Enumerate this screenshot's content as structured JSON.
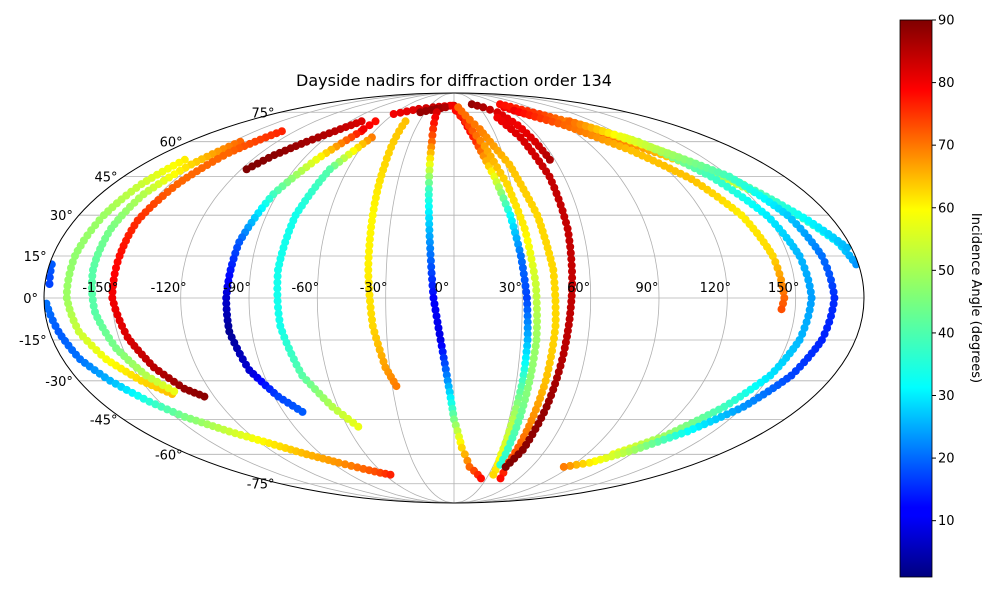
{
  "chart_data": {
    "type": "scatter",
    "projection": "mollweide",
    "title": "Dayside nadirs for diffraction order 134",
    "xlabel": "",
    "ylabel": "",
    "xlim": [
      -180,
      180
    ],
    "ylim": [
      -90,
      90
    ],
    "grid": true,
    "colormap": "jet",
    "colorbar": {
      "label": "Incidence Angle (degrees)",
      "range": [
        1,
        90
      ],
      "ticks": [
        "10",
        "20",
        "30",
        "40",
        "50",
        "60",
        "70",
        "80",
        "90"
      ]
    },
    "x_tick_labels": [
      "-150°",
      "-120°",
      "-90°",
      "-60°",
      "-30°",
      "0°",
      "30°",
      "60°",
      "90°",
      "120°",
      "150°"
    ],
    "y_tick_labels": [
      "-75°",
      "-60°",
      "-45°",
      "-30°",
      "-15°",
      "0°",
      "15°",
      "30°",
      "45°",
      "60°",
      "75°"
    ],
    "tracks": [
      {
        "points": [
          [
            -179,
            -2,
            22
          ],
          [
            -176,
            -12,
            20
          ],
          [
            -172,
            -22,
            22
          ],
          [
            -165,
            -30,
            28
          ],
          [
            -155,
            -38,
            38
          ],
          [
            -145,
            -44,
            45
          ],
          [
            -130,
            -50,
            52
          ],
          [
            -115,
            -55,
            58
          ],
          [
            -100,
            -60,
            63
          ],
          [
            -85,
            -64,
            66
          ],
          [
            -72,
            -67,
            70
          ],
          [
            -62,
            -69,
            73
          ],
          [
            -55,
            -70,
            76
          ]
        ]
      },
      {
        "points": [
          [
            -179,
            12,
            20
          ],
          [
            -178,
            5,
            18
          ]
        ]
      },
      {
        "points": [
          [
            -160,
            52,
            58
          ],
          [
            -165,
            42,
            52
          ],
          [
            -168,
            30,
            48
          ],
          [
            -170,
            15,
            47
          ],
          [
            -170,
            0,
            48
          ],
          [
            -167,
            -12,
            52
          ],
          [
            -160,
            -22,
            56
          ],
          [
            -150,
            -30,
            60
          ],
          [
            -140,
            -35,
            62
          ]
        ]
      },
      {
        "points": [
          [
            -145,
            60,
            70
          ],
          [
            -152,
            50,
            60
          ],
          [
            -158,
            38,
            50
          ],
          [
            -160,
            25,
            45
          ],
          [
            -160,
            10,
            42
          ],
          [
            -158,
            -5,
            42
          ],
          [
            -153,
            -18,
            45
          ],
          [
            -146,
            -28,
            50
          ],
          [
            -138,
            -34,
            55
          ]
        ]
      },
      {
        "points": [
          [
            -130,
            65,
            76
          ],
          [
            -140,
            55,
            70
          ],
          [
            -146,
            42,
            70
          ],
          [
            -150,
            28,
            75
          ],
          [
            -150,
            15,
            78
          ],
          [
            -150,
            0,
            80
          ],
          [
            -146,
            -14,
            82
          ],
          [
            -140,
            -25,
            85
          ],
          [
            -132,
            -33,
            88
          ],
          [
            -125,
            -36,
            89
          ]
        ]
      },
      {
        "points": [
          [
            -80,
            70,
            82
          ],
          [
            -90,
            65,
            85
          ],
          [
            -100,
            60,
            87
          ],
          [
            -110,
            54,
            89
          ],
          [
            -117,
            48,
            90
          ]
        ]
      },
      {
        "points": [
          [
            -70,
            65,
            78
          ],
          [
            -82,
            52,
            55
          ],
          [
            -92,
            38,
            40
          ],
          [
            -98,
            20,
            20
          ],
          [
            -100,
            0,
            8
          ],
          [
            -100,
            -12,
            3
          ],
          [
            -96,
            -26,
            8
          ],
          [
            -88,
            -36,
            18
          ],
          [
            -80,
            -42,
            20
          ]
        ]
      },
      {
        "points": [
          [
            -58,
            62,
            68
          ],
          [
            -70,
            48,
            42
          ],
          [
            -76,
            30,
            36
          ],
          [
            -78,
            10,
            36
          ],
          [
            -77,
            -10,
            36
          ],
          [
            -72,
            -28,
            42
          ],
          [
            -63,
            -40,
            50
          ],
          [
            -54,
            -48,
            55
          ]
        ]
      },
      {
        "points": [
          [
            -68,
            70,
            78
          ],
          [
            -70,
            66,
            80
          ]
        ]
      },
      {
        "points": [
          [
            -60,
            74,
            80
          ],
          [
            -40,
            77,
            82
          ],
          [
            -25,
            78,
            84
          ],
          [
            -5,
            79,
            80
          ]
        ]
      },
      {
        "points": [
          [
            -35,
            75,
            88
          ],
          [
            -20,
            77,
            88
          ],
          [
            -10,
            78,
            86
          ]
        ]
      },
      {
        "points": [
          [
            -42,
            70,
            62
          ],
          [
            -40,
            50,
            60
          ],
          [
            -39,
            30,
            57
          ],
          [
            -38,
            10,
            58
          ],
          [
            -36,
            -10,
            60
          ],
          [
            -32,
            -25,
            65
          ],
          [
            -28,
            -32,
            68
          ]
        ]
      },
      {
        "points": [
          [
            -18,
            75,
            82
          ],
          [
            -15,
            60,
            70
          ],
          [
            -13,
            40,
            40
          ],
          [
            -11,
            20,
            25
          ],
          [
            -9,
            0,
            12
          ],
          [
            -6,
            -15,
            10
          ],
          [
            -3,
            -30,
            25
          ],
          [
            0,
            -45,
            45
          ],
          [
            5,
            -57,
            60
          ],
          [
            12,
            -66,
            70
          ],
          [
            25,
            -72,
            78
          ]
        ]
      },
      {
        "points": [
          [
            0,
            79,
            85
          ],
          [
            8,
            72,
            82
          ],
          [
            15,
            60,
            75
          ],
          [
            22,
            45,
            55
          ],
          [
            27,
            30,
            35
          ],
          [
            30,
            15,
            22
          ],
          [
            32,
            0,
            18
          ],
          [
            33,
            -15,
            28
          ],
          [
            33,
            -30,
            40
          ],
          [
            32,
            -45,
            50
          ],
          [
            32,
            -60,
            55
          ],
          [
            34,
            -70,
            60
          ]
        ]
      },
      {
        "points": [
          [
            -2,
            79,
            80
          ],
          [
            10,
            70,
            75
          ],
          [
            20,
            58,
            65
          ],
          [
            28,
            42,
            60
          ],
          [
            33,
            25,
            58
          ],
          [
            36,
            5,
            52
          ],
          [
            37,
            -15,
            48
          ],
          [
            36,
            -35,
            46
          ],
          [
            35,
            -55,
            40
          ],
          [
            35,
            -65,
            38
          ]
        ]
      },
      {
        "points": [
          [
            5,
            78,
            70
          ],
          [
            20,
            66,
            68
          ],
          [
            32,
            50,
            62
          ],
          [
            40,
            30,
            60
          ],
          [
            44,
            10,
            60
          ],
          [
            45,
            -10,
            60
          ],
          [
            44,
            -30,
            62
          ],
          [
            42,
            -50,
            68
          ],
          [
            40,
            -66,
            74
          ],
          [
            43,
            -72,
            78
          ]
        ]
      },
      {
        "points": [
          [
            24,
            80,
            88
          ],
          [
            35,
            78,
            86
          ],
          [
            45,
            75,
            82
          ],
          [
            52,
            68,
            80
          ],
          [
            55,
            60,
            82
          ],
          [
            57,
            52,
            86
          ]
        ]
      },
      {
        "points": [
          [
            40,
            72,
            80
          ],
          [
            47,
            62,
            82
          ],
          [
            52,
            45,
            84
          ],
          [
            53,
            25,
            84
          ],
          [
            52,
            5,
            84
          ],
          [
            50,
            -20,
            85
          ],
          [
            48,
            -40,
            88
          ],
          [
            45,
            -58,
            89
          ],
          [
            40,
            -66,
            90
          ]
        ]
      },
      {
        "points": [
          [
            60,
            78,
            80
          ],
          [
            80,
            72,
            75
          ],
          [
            100,
            66,
            72
          ],
          [
            120,
            58,
            66
          ],
          [
            140,
            48,
            56
          ],
          [
            160,
            35,
            45
          ],
          [
            175,
            20,
            32
          ],
          [
            179,
            12,
            25
          ]
        ]
      },
      {
        "points": [
          [
            62,
            80,
            78
          ],
          [
            85,
            74,
            74
          ],
          [
            110,
            66,
            62
          ],
          [
            130,
            56,
            54
          ],
          [
            150,
            44,
            45
          ],
          [
            168,
            28,
            34
          ],
          [
            178,
            18,
            28
          ]
        ]
      },
      {
        "points": [
          [
            65,
            76,
            80
          ],
          [
            90,
            68,
            70
          ],
          [
            112,
            56,
            62
          ],
          [
            128,
            44,
            62
          ],
          [
            138,
            30,
            58
          ],
          [
            143,
            15,
            60
          ],
          [
            145,
            0,
            70
          ],
          [
            144,
            -4,
            72
          ]
        ]
      },
      {
        "points": [
          [
            100,
            70,
            70
          ],
          [
            125,
            60,
            50
          ],
          [
            140,
            45,
            40
          ],
          [
            150,
            30,
            33
          ],
          [
            155,
            15,
            28
          ],
          [
            157,
            0,
            26
          ],
          [
            155,
            -15,
            28
          ],
          [
            150,
            -28,
            32
          ],
          [
            140,
            -40,
            40
          ],
          [
            125,
            -52,
            48
          ],
          [
            108,
            -60,
            55
          ]
        ]
      },
      {
        "points": [
          [
            120,
            62,
            55
          ],
          [
            150,
            45,
            40
          ],
          [
            160,
            30,
            30
          ],
          [
            165,
            15,
            22
          ],
          [
            167,
            0,
            16
          ],
          [
            165,
            -15,
            15
          ],
          [
            160,
            -28,
            18
          ],
          [
            150,
            -40,
            25
          ],
          [
            135,
            -50,
            35
          ],
          [
            118,
            -58,
            48
          ],
          [
            100,
            -64,
            58
          ],
          [
            85,
            -66,
            68
          ]
        ]
      }
    ]
  }
}
